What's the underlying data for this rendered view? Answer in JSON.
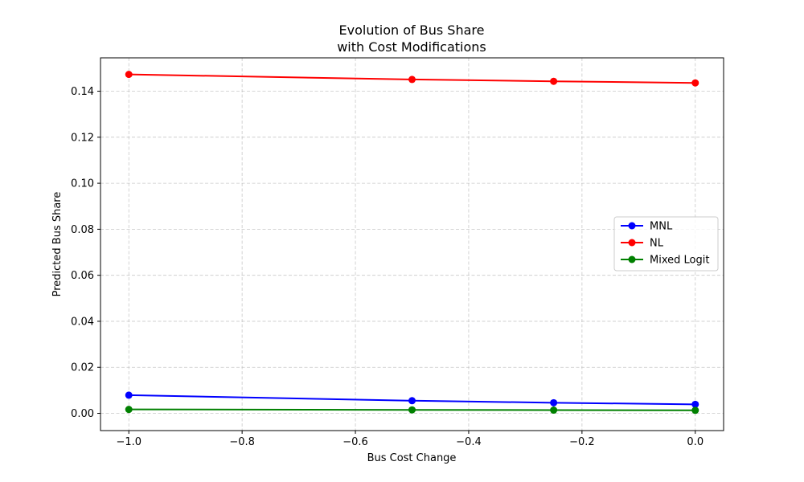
{
  "chart_data": {
    "type": "line",
    "title_lines": [
      "Evolution of Bus Share",
      "with Cost Modifications"
    ],
    "xlabel": "Bus Cost Change",
    "ylabel": "Predicted Bus Share",
    "xlim": [
      -1.05,
      0.05
    ],
    "ylim": [
      -0.0075,
      0.1545
    ],
    "xticks": [
      -1.0,
      -0.8,
      -0.6,
      -0.4,
      -0.2,
      0.0
    ],
    "xtick_labels": [
      "−1.0",
      "−0.8",
      "−0.6",
      "−0.4",
      "−0.2",
      "0.0"
    ],
    "yticks": [
      0.0,
      0.02,
      0.04,
      0.06,
      0.08,
      0.1,
      0.12,
      0.14
    ],
    "ytick_labels": [
      "0.00",
      "0.02",
      "0.04",
      "0.06",
      "0.08",
      "0.10",
      "0.12",
      "0.14"
    ],
    "grid": true,
    "legend_position": "center-right",
    "x": [
      -1.0,
      -0.5,
      -0.25,
      0.0
    ],
    "series": [
      {
        "name": "MNL",
        "color": "#0000ff",
        "marker": "circle",
        "values": [
          0.0079,
          0.0055,
          0.0046,
          0.0039
        ]
      },
      {
        "name": "NL",
        "color": "#ff0000",
        "marker": "circle",
        "values": [
          0.1473,
          0.1451,
          0.1443,
          0.1436
        ]
      },
      {
        "name": "Mixed Logit",
        "color": "#008000",
        "marker": "circle",
        "values": [
          0.0017,
          0.0015,
          0.0014,
          0.0013
        ]
      }
    ]
  }
}
